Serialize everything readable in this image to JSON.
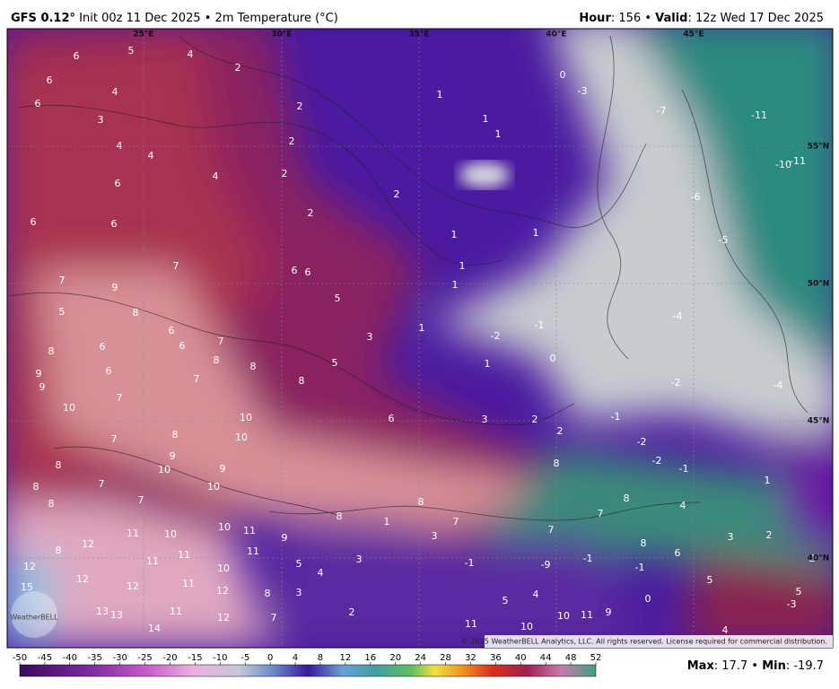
{
  "header": {
    "model": "GFS 0.12°",
    "run": "Init 00z 11 Dec 2025 • 2m Temperature (°C)",
    "hour_label": "Hour",
    "hour_text": ": 156 • ",
    "valid_label": "Valid",
    "valid_text": ": 12z Wed 17 Dec 2025"
  },
  "map": {
    "lon_labels": [
      "25°E",
      "30°E",
      "35°E",
      "40°E",
      "45°E"
    ],
    "lat_labels": [
      "55°N",
      "50°N",
      "45°N",
      "40°N"
    ],
    "labels": [
      6,
      5,
      4,
      2,
      6,
      4,
      6,
      3,
      2,
      1,
      1,
      1,
      0,
      -3,
      -7,
      -11,
      4,
      4,
      2,
      4,
      2,
      6,
      2,
      -6,
      -10,
      -11,
      6,
      6,
      2,
      1,
      1,
      -5,
      7,
      6,
      6,
      1,
      7,
      9,
      1,
      5,
      5,
      8,
      1,
      -1,
      -2,
      -4,
      6,
      3,
      8,
      6,
      6,
      7,
      8,
      0,
      1,
      5,
      6,
      9,
      9,
      7,
      8,
      8,
      -2,
      -4,
      7,
      10,
      10,
      6,
      3,
      2,
      -1,
      2,
      8,
      7,
      10,
      -2,
      9,
      8,
      10,
      9,
      8,
      -2,
      -1,
      8,
      7,
      10,
      1,
      7,
      8,
      8,
      4,
      8,
      8,
      7,
      1,
      7,
      10,
      11,
      11,
      10,
      9,
      3,
      7,
      3,
      2,
      12,
      8,
      8,
      11,
      11,
      11,
      3,
      5,
      -1,
      -9,
      -1,
      6,
      2,
      12,
      10,
      4,
      -1,
      12,
      11,
      12,
      5,
      15,
      12,
      3,
      8,
      5,
      4,
      0,
      5,
      13,
      13,
      11,
      10,
      11,
      9,
      2,
      12,
      7,
      11,
      10,
      14,
      -3,
      4
    ],
    "copyright": "© 2025 WeatherBELL Analytics, LLC. All rights reserved. License required for commercial distribution.",
    "logo": "WeatherBELL"
  },
  "colorbar": {
    "ticks": [
      -50,
      -45,
      -40,
      -35,
      -30,
      -25,
      -20,
      -15,
      -10,
      -5,
      0,
      4,
      8,
      12,
      16,
      20,
      24,
      28,
      32,
      36,
      40,
      44,
      48,
      52
    ]
  },
  "footer": {
    "max_label": "Max",
    "max_text": ": 17.7 • ",
    "min_label": "Min",
    "min_text": ": -19.7"
  }
}
